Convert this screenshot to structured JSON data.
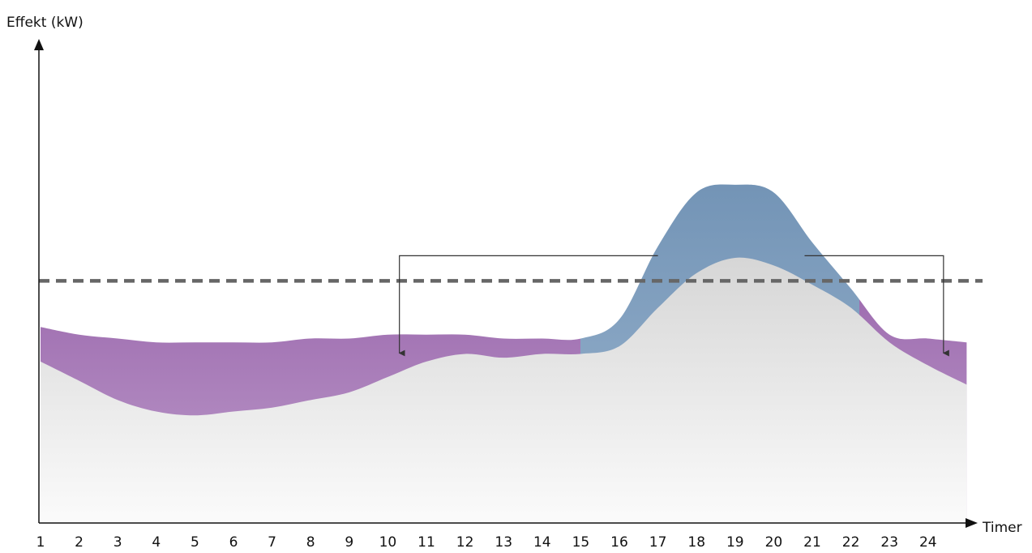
{
  "chart_data": {
    "type": "area",
    "ylabel": "Effekt (kW)",
    "xlabel": "Timer",
    "x": [
      1,
      2,
      3,
      4,
      5,
      6,
      7,
      8,
      9,
      10,
      11,
      12,
      13,
      14,
      15,
      16,
      17,
      18,
      19,
      20,
      21,
      22,
      23,
      24,
      25
    ],
    "x_tick_labels": [
      "1",
      "2",
      "3",
      "4",
      "5",
      "6",
      "7",
      "8",
      "9",
      "10",
      "11",
      "12",
      "13",
      "14",
      "15",
      "16",
      "17",
      "18",
      "19",
      "20",
      "21",
      "22",
      "23",
      "24"
    ],
    "ylim": [
      0,
      100
    ],
    "threshold": 63,
    "grid": false,
    "legend": "none",
    "series": [
      {
        "values": [
          42,
          37,
          32,
          29,
          28,
          29,
          30,
          32,
          34,
          38,
          42,
          44,
          43,
          44,
          44,
          46,
          56,
          65,
          69,
          67,
          62,
          56,
          47,
          41,
          36
        ]
      },
      {
        "values": [
          51,
          49,
          48,
          47,
          47,
          47,
          47,
          48,
          48,
          49,
          49,
          49,
          48,
          48,
          48,
          53,
          72,
          86,
          88,
          86,
          73,
          61,
          49,
          48,
          47
        ]
      }
    ],
    "series_colors": [
      "#e0e0e0",
      "#9b64ab",
      "#7c9dbd"
    ],
    "threshold_color": "#666666",
    "arrow_color": "#333333",
    "shift_arrows": [
      {
        "from_x": 17.0,
        "to_x": 10.3
      },
      {
        "from_x": 20.8,
        "to_x": 24.4
      }
    ]
  }
}
